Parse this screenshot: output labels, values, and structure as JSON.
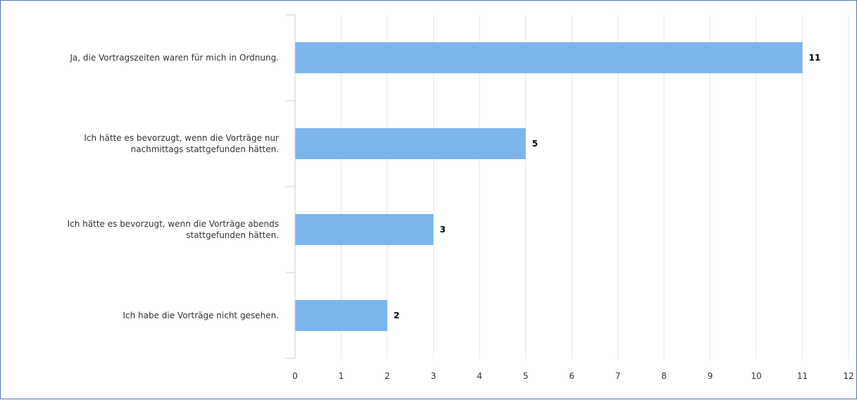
{
  "chart_data": {
    "type": "bar",
    "orientation": "horizontal",
    "categories": [
      [
        "Ja, die Vortragszeiten waren für mich in Ordnung."
      ],
      [
        "Ich hätte es bevorzugt, wenn die Vorträge nur",
        "nachmittags stattgefunden hätten."
      ],
      [
        "Ich hätte es bevorzugt, wenn die Vorträge abends",
        "stattgefunden hätten."
      ],
      [
        "Ich habe die Vorträge nicht gesehen."
      ]
    ],
    "values": [
      11,
      5,
      3,
      2
    ],
    "data_labels": [
      "11",
      "5",
      "3",
      "2"
    ],
    "ticks": [
      "0",
      "1",
      "2",
      "3",
      "4",
      "5",
      "6",
      "7",
      "8",
      "9",
      "10",
      "11",
      "12"
    ],
    "xlim": [
      0,
      12
    ],
    "grid": true,
    "bar_color": "#7cb5ec",
    "grid_color": "#e6e6e6",
    "axis_color": "#c0d0e0",
    "frame_color": "#4a78b4"
  }
}
